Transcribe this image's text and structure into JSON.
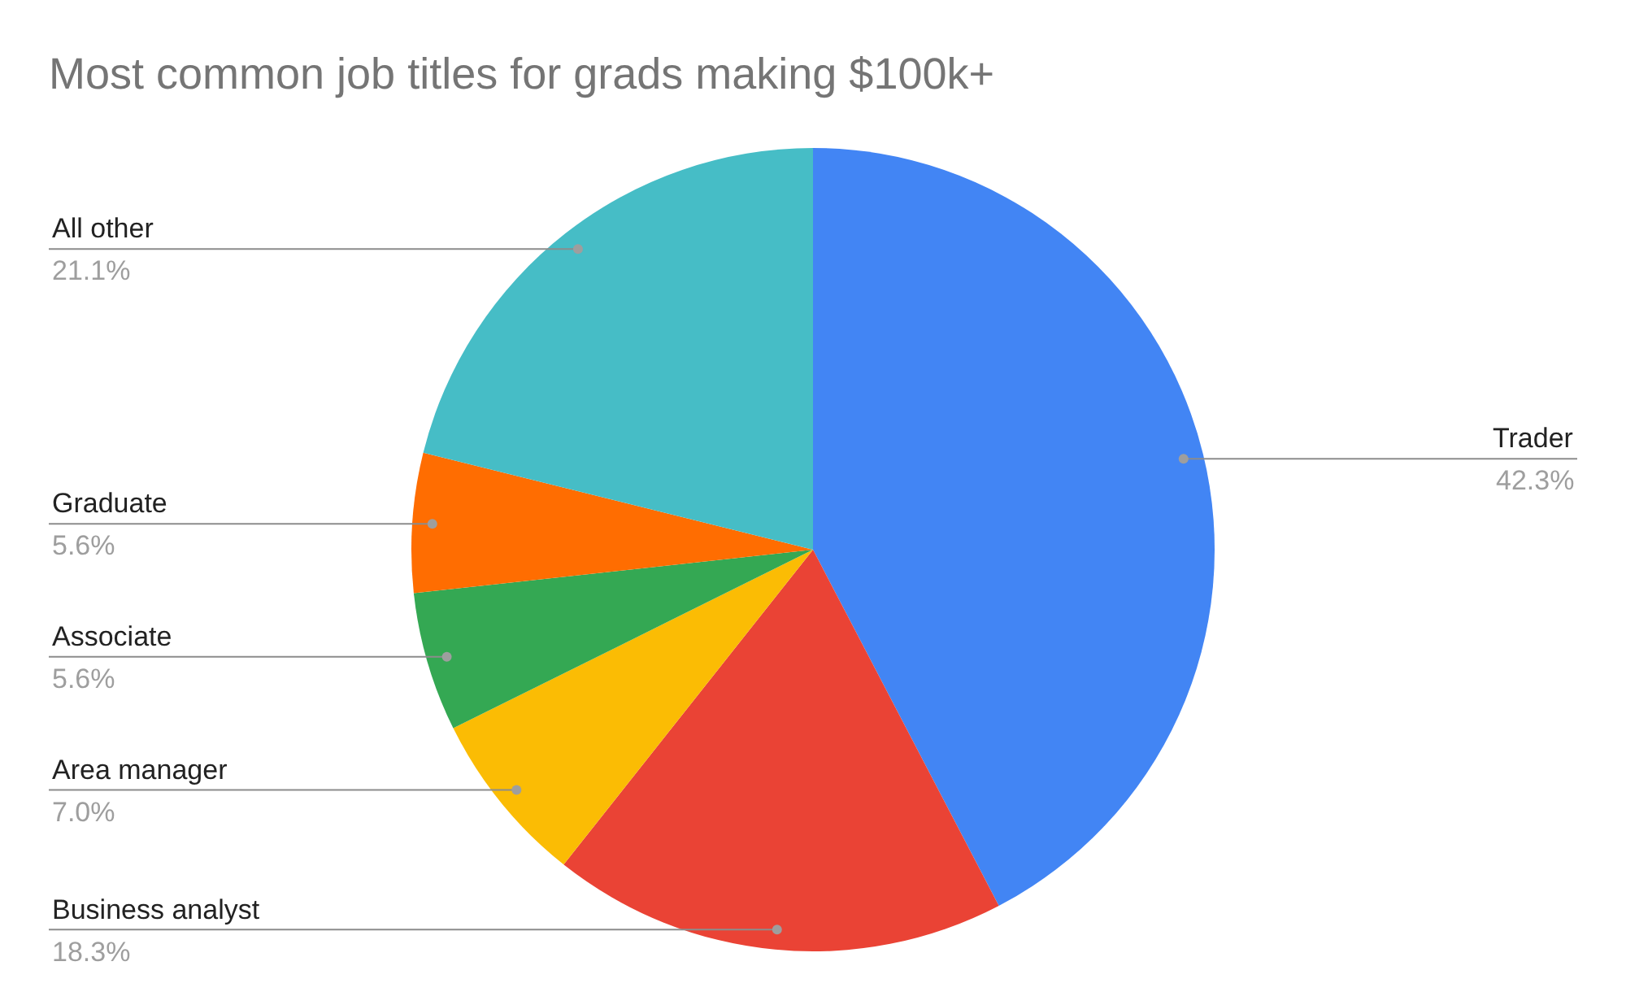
{
  "chart_data": {
    "type": "pie",
    "title": "Most common job titles for grads making $100k+",
    "categories": [
      "Trader",
      "Business analyst",
      "Area manager",
      "Associate",
      "Graduate",
      "All other"
    ],
    "values": [
      42.3,
      18.3,
      7.0,
      5.6,
      5.6,
      21.1
    ],
    "colors": [
      "#4285f4",
      "#ea4335",
      "#fbbc04",
      "#34a853",
      "#ff6d01",
      "#46bdc6"
    ],
    "value_labels": [
      "42.3%",
      "18.3%",
      "7.0%",
      "5.6%",
      "5.6%",
      "21.1%"
    ],
    "legend": false
  }
}
